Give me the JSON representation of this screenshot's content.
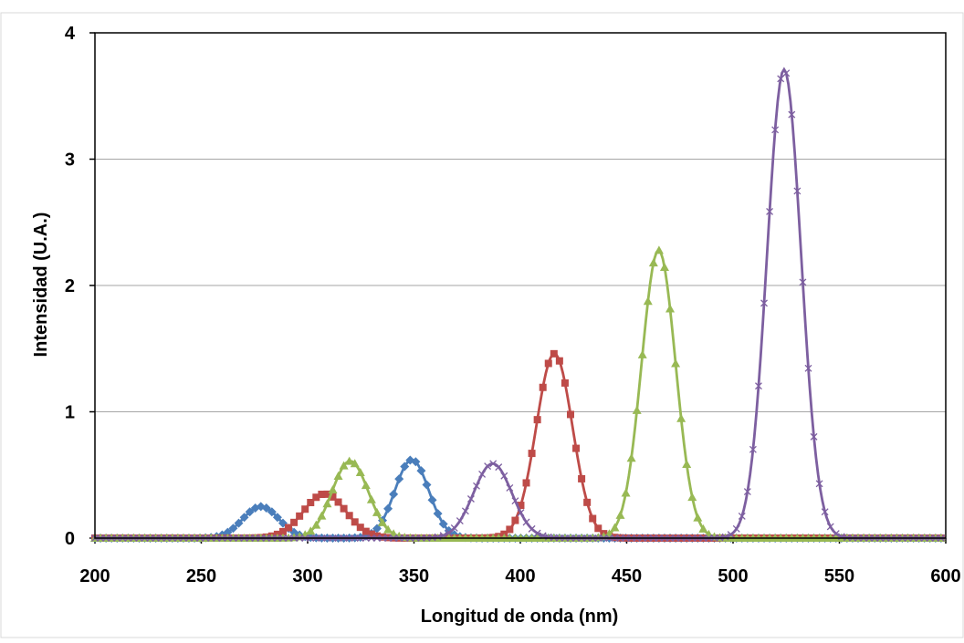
{
  "colors": {
    "blue": "#4a7ebb",
    "red": "#be4b48",
    "green": "#98b954",
    "purple": "#7d5fa0",
    "grid": "#a6a6a6",
    "axis": "#000000",
    "frame": "#d9d9d9"
  },
  "chart_data": {
    "type": "line",
    "title": "",
    "xlabel": "Longitud de onda (nm)",
    "ylabel": "Intensidad (U.A.)",
    "xlim": [
      200,
      600
    ],
    "ylim": [
      0,
      4
    ],
    "xticks": [
      200,
      250,
      300,
      350,
      400,
      450,
      500,
      550,
      600
    ],
    "yticks": [
      0,
      1,
      2,
      3,
      4
    ],
    "grid": "horizontal",
    "legend": "none",
    "series": [
      {
        "color": "blue",
        "marker": "diamond",
        "peaks": [
          {
            "center": 278,
            "height": 0.25,
            "sigma": 8.5
          },
          {
            "center": 349,
            "height": 0.62,
            "sigma": 8.0
          }
        ]
      },
      {
        "color": "red",
        "marker": "square",
        "peaks": [
          {
            "center": 308,
            "height": 0.35,
            "sigma": 10.0
          },
          {
            "center": 416,
            "height": 1.46,
            "sigma": 8.5
          }
        ]
      },
      {
        "color": "green",
        "marker": "triangle",
        "peaks": [
          {
            "center": 320,
            "height": 0.61,
            "sigma": 8.5
          },
          {
            "center": 465,
            "height": 2.28,
            "sigma": 8.0
          }
        ]
      },
      {
        "color": "purple",
        "marker": "x",
        "peaks": [
          {
            "center": 387,
            "height": 0.59,
            "sigma": 9.0
          },
          {
            "center": 524,
            "height": 3.71,
            "sigma": 8.0
          }
        ]
      }
    ]
  }
}
